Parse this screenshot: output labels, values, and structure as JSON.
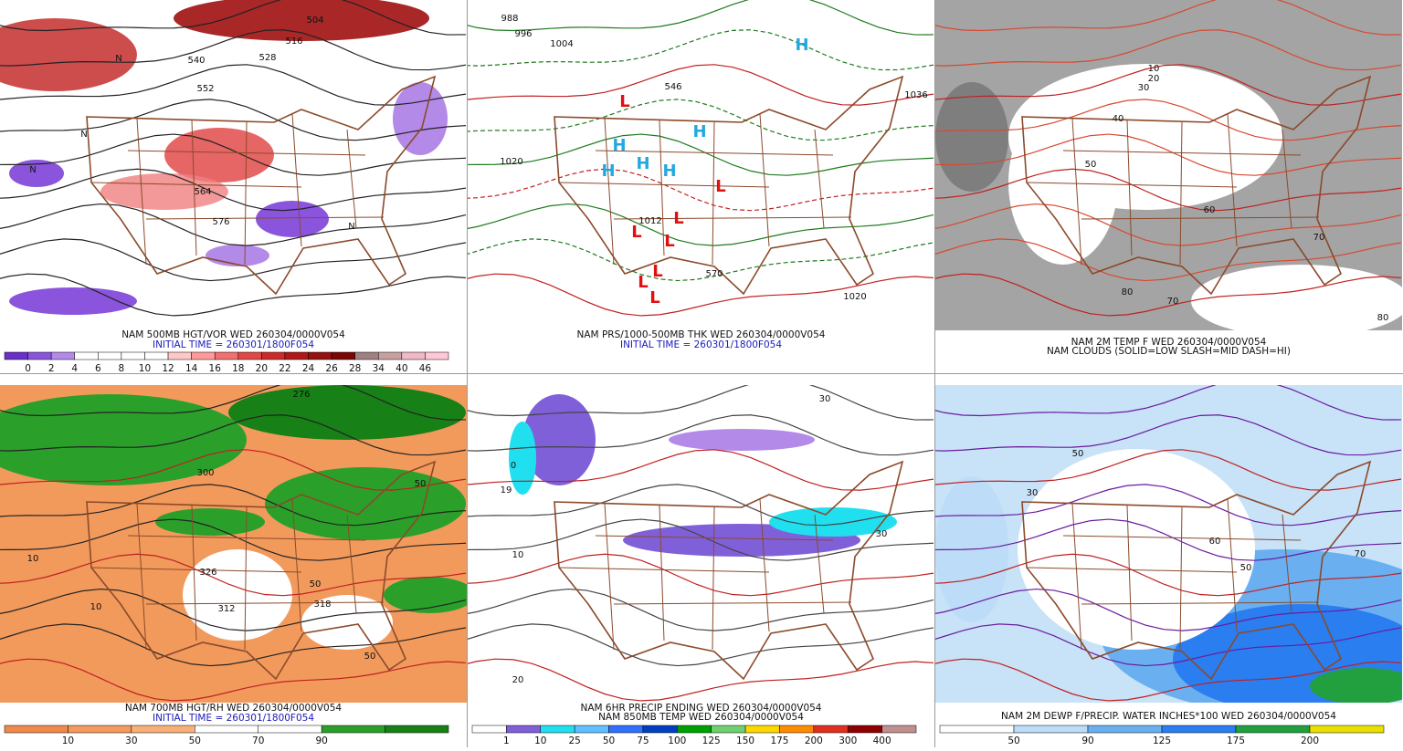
{
  "panels": [
    {
      "caption": [
        "NAM 500MB HGT/VOR WED 260304/0000V054"
      ],
      "initial_time": "INITIAL TIME = 260301/1800F054",
      "colorbar": {
        "colors": [
          "#6a2fc8",
          "#8a55dc",
          "#b48ae8",
          "#ffffff",
          "#ffffff",
          "#ffffff",
          "#ffffff",
          "#ffc8c8",
          "#ff9a9a",
          "#f27070",
          "#e04848",
          "#cc2a2a",
          "#b01818",
          "#961010",
          "#7a0606",
          "#a08080",
          "#c8a0a0",
          "#f0b8c8",
          "#ffc8d8"
        ],
        "labels": [
          "0",
          "2",
          "4",
          "6",
          "8",
          "10",
          "12",
          "14",
          "16",
          "18",
          "20",
          "22",
          "24",
          "26",
          "28",
          "34",
          "40",
          "46"
        ]
      },
      "map_labels": [
        "504",
        "516",
        "528",
        "540",
        "552",
        "564",
        "576",
        "N",
        "N",
        "N",
        "N"
      ]
    },
    {
      "caption": [
        "NAM PRS/1000-500MB THK WED 260304/0000V054"
      ],
      "initial_time": "INITIAL TIME = 260301/1800F054",
      "map_labels": [
        "988",
        "996",
        "1004",
        "1020",
        "1012",
        "1020",
        "1036",
        "546",
        "570",
        "H",
        "H",
        "H",
        "H",
        "H",
        "H",
        "L",
        "L",
        "L",
        "L",
        "L",
        "L",
        "L",
        "L"
      ]
    },
    {
      "caption": [
        "NAM 2M TEMP F WED 260304/0000V054",
        "NAM CLOUDS (SOLID=LOW SLASH=MID DASH=HI)"
      ],
      "map_labels": [
        "10",
        "20",
        "30",
        "40",
        "50",
        "60",
        "70",
        "80",
        "70",
        "80"
      ]
    },
    {
      "caption": [
        "NAM 700MB HGT/RH WED 260304/0000V054"
      ],
      "initial_time": "INITIAL TIME = 260301/1800F054",
      "colorbar": {
        "colors": [
          "#f0894a",
          "#f49a5c",
          "#f8b078",
          "#ffffff",
          "#ffffff",
          "#2aa02a",
          "#178017"
        ],
        "labels": [
          "10",
          "30",
          "50",
          "70",
          "90"
        ]
      },
      "map_labels": [
        "276",
        "300",
        "50",
        "10",
        "10",
        "326",
        "318",
        "312",
        "50",
        "50"
      ]
    },
    {
      "caption": [
        "NAM 6HR PRECIP ENDING WED 260304/0000V054",
        "NAM 850MB TEMP WED 260304/0000V054"
      ],
      "colorbar": {
        "colors": [
          "#ffffff",
          "#8060d8",
          "#20e0f0",
          "#60c0ff",
          "#3070ff",
          "#0040c0",
          "#00a000",
          "#70d070",
          "#ffd700",
          "#ff8c00",
          "#e03020",
          "#900000",
          "#c09090"
        ],
        "labels": [
          "1",
          "10",
          "25",
          "50",
          "75",
          "100",
          "125",
          "150",
          "175",
          "200",
          "300",
          "400"
        ]
      },
      "map_labels": [
        "30",
        "19",
        "10",
        "20",
        "30",
        "0"
      ]
    },
    {
      "caption": [
        "NAM 2M DEWP F/PRECIP. WATER INCHES*100 WED 260304/0000V054"
      ],
      "colorbar": {
        "colors": [
          "#ffffff",
          "#bcdcf8",
          "#6ab0f0",
          "#2a7ef0",
          "#22a040",
          "#e8e000"
        ],
        "labels": [
          "50",
          "90",
          "125",
          "175",
          "200"
        ]
      },
      "map_labels": [
        "30",
        "50",
        "60",
        "70",
        "50"
      ]
    }
  ]
}
